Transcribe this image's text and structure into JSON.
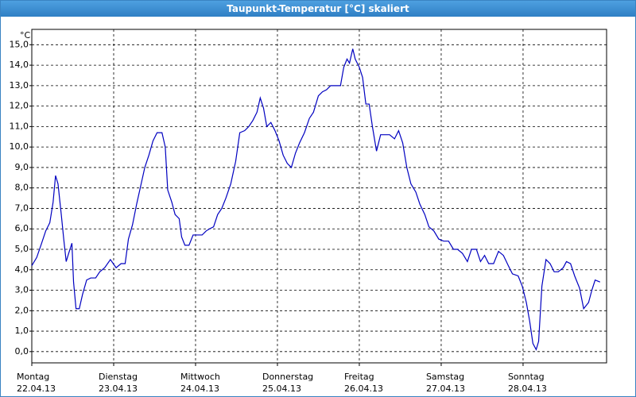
{
  "window_title": "Taupunkt-Temperatur [°C] skaliert",
  "chart_data": {
    "type": "line",
    "y_unit": "°C",
    "x": [
      0,
      0.06,
      0.12,
      0.17,
      0.22,
      0.26,
      0.29,
      0.32,
      0.36,
      0.39,
      0.42,
      0.45,
      0.49,
      0.51,
      0.54,
      0.58,
      0.62,
      0.67,
      0.72,
      0.78,
      0.83,
      0.89,
      0.96,
      1.03,
      1.09,
      1.14,
      1.18,
      1.23,
      1.28,
      1.33,
      1.38,
      1.43,
      1.48,
      1.53,
      1.59,
      1.63,
      1.66,
      1.71,
      1.75,
      1.8,
      1.83,
      1.87,
      1.92,
      1.97,
      2.02,
      2.08,
      2.13,
      2.17,
      2.22,
      2.27,
      2.32,
      2.37,
      2.43,
      2.49,
      2.54,
      2.6,
      2.65,
      2.7,
      2.75,
      2.79,
      2.83,
      2.87,
      2.92,
      2.97,
      3.02,
      3.07,
      3.12,
      3.17,
      3.22,
      3.27,
      3.33,
      3.39,
      3.44,
      3.5,
      3.55,
      3.6,
      3.65,
      3.71,
      3.77,
      3.81,
      3.85,
      3.88,
      3.92,
      3.95,
      4.0,
      4.04,
      4.08,
      4.12,
      4.16,
      4.21,
      4.26,
      4.32,
      4.37,
      4.43,
      4.48,
      4.53,
      4.58,
      4.63,
      4.69,
      4.74,
      4.8,
      4.85,
      4.91,
      4.97,
      5.03,
      5.09,
      5.15,
      5.2,
      5.26,
      5.32,
      5.37,
      5.43,
      5.48,
      5.53,
      5.58,
      5.64,
      5.7,
      5.76,
      5.82,
      5.87,
      5.94,
      5.99,
      6.04,
      6.08,
      6.12,
      6.16,
      6.19,
      6.23,
      6.28,
      6.33,
      6.38,
      6.43,
      6.49,
      6.53,
      6.58,
      6.63,
      6.69,
      6.74,
      6.8,
      6.84,
      6.88,
      6.94
    ],
    "series": [
      {
        "name": "Taupunkt",
        "color": "#0000c0",
        "values": [
          4.2,
          4.6,
          5.3,
          5.9,
          6.3,
          7.3,
          8.6,
          8.2,
          6.7,
          5.5,
          4.4,
          4.8,
          5.3,
          3.4,
          2.1,
          2.1,
          2.8,
          3.5,
          3.6,
          3.6,
          3.9,
          4.1,
          4.5,
          4.1,
          4.3,
          4.3,
          5.5,
          6.2,
          7.2,
          8.1,
          9.0,
          9.6,
          10.3,
          10.7,
          10.7,
          10.0,
          7.9,
          7.3,
          6.7,
          6.5,
          5.6,
          5.2,
          5.2,
          5.7,
          5.7,
          5.7,
          5.9,
          6.0,
          6.1,
          6.7,
          7.0,
          7.5,
          8.2,
          9.3,
          10.7,
          10.8,
          11.0,
          11.3,
          11.7,
          12.4,
          11.9,
          11.0,
          11.2,
          10.8,
          10.3,
          9.6,
          9.2,
          9.0,
          9.7,
          10.2,
          10.7,
          11.4,
          11.7,
          12.5,
          12.7,
          12.8,
          13.0,
          13.0,
          13.0,
          13.9,
          14.3,
          14.1,
          14.8,
          14.3,
          13.9,
          13.4,
          12.1,
          12.1,
          11.0,
          9.8,
          10.6,
          10.6,
          10.6,
          10.4,
          10.8,
          10.2,
          9.0,
          8.2,
          7.8,
          7.2,
          6.7,
          6.1,
          5.9,
          5.5,
          5.4,
          5.4,
          5.0,
          5.0,
          4.8,
          4.4,
          5.0,
          5.0,
          4.4,
          4.7,
          4.3,
          4.3,
          4.9,
          4.7,
          4.2,
          3.8,
          3.7,
          3.2,
          2.4,
          1.5,
          0.4,
          0.1,
          0.5,
          3.2,
          4.5,
          4.3,
          3.9,
          3.9,
          4.1,
          4.4,
          4.3,
          3.7,
          3.1,
          2.1,
          2.4,
          3.0,
          3.5,
          3.4
        ]
      }
    ],
    "xlim": [
      0,
      7.02
    ],
    "xticks": [
      {
        "value": 0,
        "label": "Montag"
      },
      {
        "value": 1,
        "label": "Dienstag"
      },
      {
        "value": 2,
        "label": "Mittwoch"
      },
      {
        "value": 3,
        "label": "Donnerstag"
      },
      {
        "value": 4,
        "label": "Freitag"
      },
      {
        "value": 5,
        "label": "Samstag"
      },
      {
        "value": 6,
        "label": "Sonntag"
      }
    ],
    "xtick_dates": [
      "22.04.13",
      "23.04.13",
      "24.04.13",
      "25.04.13",
      "26.04.13",
      "27.04.13",
      "28.04.13"
    ],
    "ylim": [
      -0.55,
      15.75
    ],
    "yticks": [
      {
        "value": 0,
        "label": "0,0"
      },
      {
        "value": 1,
        "label": "1,0"
      },
      {
        "value": 2,
        "label": "2,0"
      },
      {
        "value": 3,
        "label": "3,0"
      },
      {
        "value": 4,
        "label": "4,0"
      },
      {
        "value": 5,
        "label": "5,0"
      },
      {
        "value": 6,
        "label": "6,0"
      },
      {
        "value": 7,
        "label": "7,0"
      },
      {
        "value": 8,
        "label": "8,0"
      },
      {
        "value": 9,
        "label": "9,0"
      },
      {
        "value": 10,
        "label": "10,0"
      },
      {
        "value": 11,
        "label": "11,0"
      },
      {
        "value": 12,
        "label": "12,0"
      },
      {
        "value": 13,
        "label": "13,0"
      },
      {
        "value": 14,
        "label": "14,0"
      },
      {
        "value": 15,
        "label": "15,0"
      }
    ],
    "grid": true
  }
}
